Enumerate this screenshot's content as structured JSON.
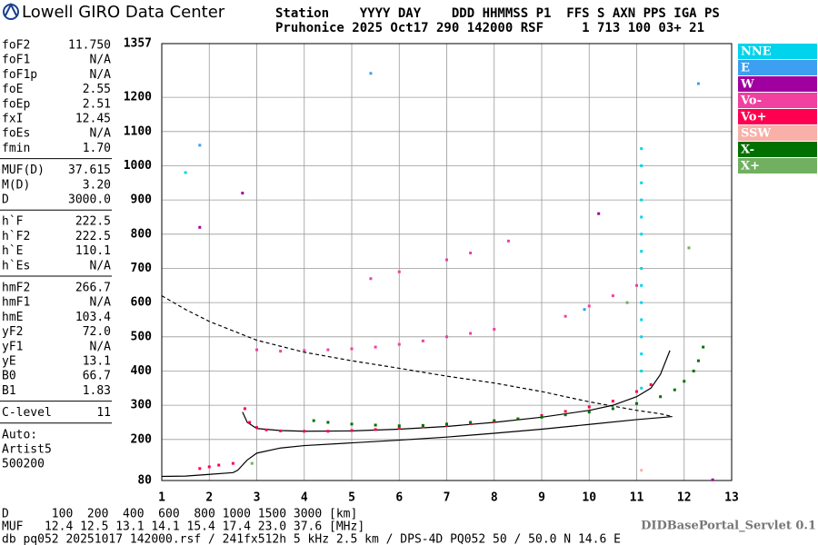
{
  "header": {
    "title": "Lowell GIRO Data Center",
    "lines": [
      "Station    YYYY DAY    DDD HHMMSS P1  FFS S AXN PPS IGA PS",
      "Pruhonice 2025 Oct17 290 142000 RSF     1 713 100 03+ 21"
    ]
  },
  "parameters": [
    [
      [
        "foF2",
        "11.750"
      ],
      [
        "foF1",
        "N/A"
      ],
      [
        "foF1p",
        "N/A"
      ],
      [
        "foE",
        "2.55"
      ],
      [
        "foEp",
        "2.51"
      ],
      [
        "fxI",
        "12.45"
      ],
      [
        "foEs",
        "N/A"
      ],
      [
        "fmin",
        "1.70"
      ]
    ],
    [
      [
        "MUF(D)",
        "37.615"
      ],
      [
        "M(D)",
        "3.20"
      ],
      [
        "D",
        "3000.0"
      ]
    ],
    [
      [
        "h`F",
        "222.5"
      ],
      [
        "h`F2",
        "222.5"
      ],
      [
        "h`E",
        "110.1"
      ],
      [
        "h`Es",
        "N/A"
      ]
    ],
    [
      [
        "hmF2",
        "266.7"
      ],
      [
        "hmF1",
        "N/A"
      ],
      [
        "hmE",
        "103.4"
      ],
      [
        "yF2",
        "72.0"
      ],
      [
        "yF1",
        "N/A"
      ],
      [
        "yE",
        "13.1"
      ],
      [
        "B0",
        "66.7"
      ],
      [
        "B1",
        "1.83"
      ]
    ],
    [
      [
        "C-level",
        "11"
      ]
    ]
  ],
  "autoscaling": [
    "Auto:",
    "Artist5",
    "500200"
  ],
  "footer": {
    "lines": [
      "D      100  200  400  600  800 1000 1500 3000 [km]",
      "MUF   12.4 12.5 13.1 14.1 15.4 17.4 23.0 37.6 [MHz]",
      "db pq052 20251017 142000.rsf / 241fx512h 5 kHz 2.5 km / DPS-4D PQ052 50 / 50.0 N 14.6 E"
    ],
    "source": "DIDBasePortal_Servlet 0.1"
  },
  "chart_data": {
    "type": "scatter",
    "xlim": [
      1,
      13
    ],
    "xticks": [
      1,
      2,
      3,
      4,
      5,
      6,
      7,
      8,
      9,
      10,
      11,
      12,
      13
    ],
    "ylim": [
      80,
      1357
    ],
    "yticks": [
      80,
      200,
      300,
      400,
      500,
      600,
      700,
      800,
      900,
      1000,
      1100,
      1200,
      1357
    ],
    "grid": true,
    "series": [
      {
        "name": "NNE",
        "color": "#00d4ec",
        "x": [
          11.1,
          11.1,
          11.1,
          11.1,
          11.1,
          11.1,
          11.1,
          11.1,
          11.1,
          11.1,
          11.1,
          11.1,
          11.1,
          11.1,
          11.1,
          1.5
        ],
        "values": [
          350,
          400,
          450,
          500,
          550,
          600,
          650,
          700,
          750,
          800,
          850,
          900,
          950,
          1000,
          1050,
          980
        ]
      },
      {
        "name": "E",
        "color": "#3c9ff0",
        "x": [
          1.8,
          9.9,
          12.3,
          5.4
        ],
        "values": [
          1060,
          580,
          1240,
          1270
        ]
      },
      {
        "name": "W",
        "color": "#a000a0",
        "x": [
          1.8,
          2.7,
          12.6,
          10.2
        ],
        "values": [
          820,
          920,
          82,
          860
        ]
      },
      {
        "name": "Vo-",
        "color": "#f040a0",
        "x": [
          3,
          3.5,
          4,
          4.5,
          5,
          5.5,
          6,
          6.5,
          7,
          7.5,
          8,
          5.4,
          6,
          7,
          7.5,
          8.3,
          9.5,
          10,
          10.5,
          11
        ],
        "values": [
          462,
          458,
          460,
          462,
          465,
          470,
          478,
          488,
          500,
          510,
          522,
          670,
          690,
          725,
          745,
          780,
          560,
          590,
          620,
          650
        ]
      },
      {
        "name": "Vo+",
        "color": "#ff0050",
        "x": [
          1.8,
          2,
          2.2,
          2.5,
          2.75,
          2.85,
          3,
          3.2,
          3.5,
          4,
          4.5,
          5,
          5.5,
          6,
          6.5,
          7,
          7.5,
          8,
          8.5,
          9,
          9.5,
          10,
          10.5,
          11,
          11.3
        ],
        "values": [
          115,
          120,
          125,
          130,
          290,
          250,
          235,
          228,
          225,
          224,
          224,
          226,
          229,
          233,
          237,
          241,
          246,
          252,
          260,
          270,
          282,
          295,
          312,
          340,
          360
        ]
      },
      {
        "name": "SSW",
        "color": "#f8b0a8",
        "x": [
          11.1
        ],
        "values": [
          110
        ]
      },
      {
        "name": "X-",
        "color": "#007000",
        "x": [
          4.2,
          4.5,
          5,
          5.5,
          6,
          6.5,
          7,
          7.5,
          8,
          8.5,
          9,
          9.5,
          10,
          10.5,
          11,
          11.5,
          11.8,
          12,
          12.2,
          12.3,
          12.4
        ],
        "values": [
          255,
          250,
          245,
          242,
          240,
          241,
          245,
          250,
          255,
          260,
          265,
          272,
          280,
          290,
          305,
          325,
          345,
          370,
          400,
          430,
          470
        ]
      },
      {
        "name": "X+",
        "color": "#70b060",
        "x": [
          2.9,
          10.8,
          12.1
        ],
        "values": [
          130,
          600,
          760
        ]
      }
    ],
    "lines": [
      {
        "color": "#000000",
        "dash": false,
        "x": [
          2.7,
          2.8,
          3,
          3.5,
          4,
          5,
          6,
          7,
          8,
          9,
          10,
          10.5,
          11,
          11.3,
          11.5,
          11.7
        ],
        "values": [
          280,
          250,
          232,
          226,
          224,
          225,
          230,
          238,
          250,
          265,
          285,
          300,
          325,
          350,
          390,
          460
        ]
      },
      {
        "color": "#000000",
        "dash": false,
        "x": [
          1,
          1.5,
          2,
          2.5,
          2.6,
          2.8,
          3,
          3.5,
          4,
          5,
          6,
          7,
          8,
          9,
          10,
          11,
          11.6,
          11.75
        ],
        "values": [
          92,
          93,
          98,
          103,
          110,
          140,
          160,
          175,
          182,
          190,
          198,
          207,
          218,
          230,
          244,
          258,
          265,
          267
        ]
      },
      {
        "color": "#000000",
        "dash": true,
        "x": [
          1,
          1.5,
          2,
          3,
          4,
          5,
          6,
          7,
          8,
          9,
          10,
          11,
          11.5,
          11.75
        ],
        "values": [
          620,
          580,
          545,
          490,
          455,
          430,
          408,
          385,
          365,
          340,
          310,
          285,
          275,
          267
        ]
      }
    ]
  }
}
